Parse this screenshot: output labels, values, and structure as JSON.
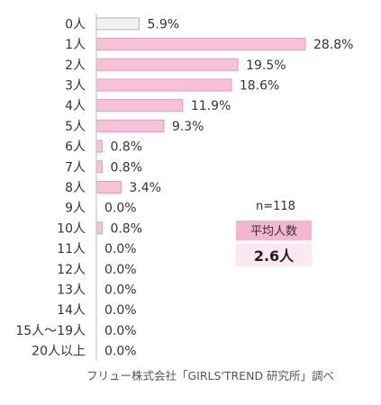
{
  "chart_data": {
    "type": "bar",
    "orientation": "horizontal",
    "categories": [
      "0人",
      "1人",
      "2人",
      "3人",
      "4人",
      "5人",
      "6人",
      "7人",
      "8人",
      "9人",
      "10人",
      "11人",
      "12人",
      "13人",
      "14人",
      "15人～19人",
      "20人以上"
    ],
    "values": [
      5.9,
      28.8,
      19.5,
      18.6,
      11.9,
      9.3,
      0.8,
      0.8,
      3.4,
      0.0,
      0.8,
      0.0,
      0.0,
      0.0,
      0.0,
      0.0,
      0.0
    ],
    "value_labels": [
      "5.9%",
      "28.8%",
      "19.5%",
      "18.6%",
      "11.9%",
      "9.3%",
      "0.8%",
      "0.8%",
      "3.4%",
      "0.0%",
      "0.8%",
      "0.0%",
      "0.0%",
      "0.0%",
      "0.0%",
      "0.0%",
      "0.0%"
    ],
    "unit": "%",
    "xlim": [
      0,
      30
    ],
    "grid": false,
    "colors": {
      "bar": "#f7c1d6",
      "bar_stroke": "#e79ab9",
      "highlight_bar": "#f0f0f0",
      "highlight_stroke": "#b5b5b5",
      "axis": "#bbbbbb"
    }
  },
  "summary": {
    "n_label": "n=118",
    "avg_label": "平均人数",
    "avg_value": "2.6人",
    "colors": {
      "label_bg": "#f5b6cf",
      "value_bg": "#fde8f1"
    }
  },
  "source": "フリュー株式会社「GIRLS'TREND 研究所」調べ"
}
